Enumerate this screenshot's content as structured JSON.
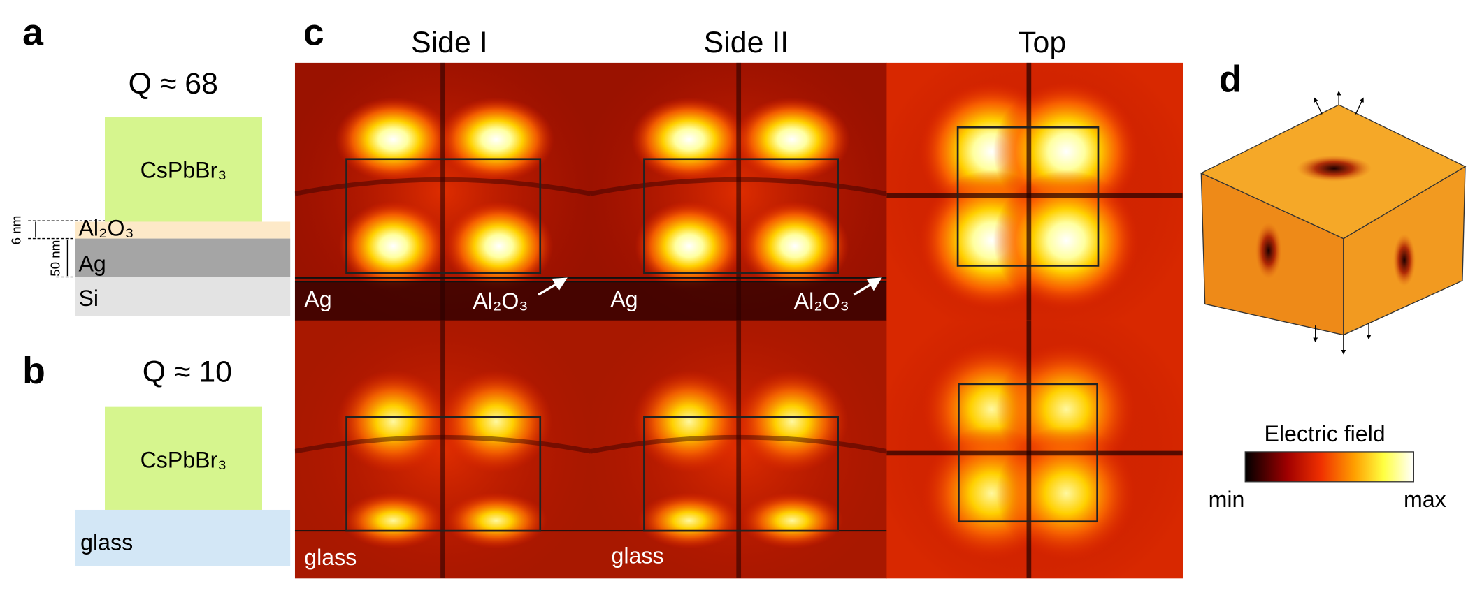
{
  "panels": {
    "a": "a",
    "b": "b",
    "c": "c",
    "d": "d"
  },
  "structure_a": {
    "q": "Q ≈ 68",
    "crystal": "CsPbBr₃",
    "spacer": "Al₂O₃",
    "metal": "Ag",
    "substrate": "Si",
    "spacer_thickness": "6 nm",
    "metal_thickness": "50 nm"
  },
  "structure_b": {
    "q": "Q ≈ 10",
    "crystal": "CsPbBr₃",
    "substrate": "glass"
  },
  "field_maps": {
    "columns": [
      "Side I",
      "Side II",
      "Top"
    ],
    "row_a_labels": {
      "side_i_left": "Ag",
      "side_i_right": "Al₂O₃",
      "side_ii_left": "Ag",
      "side_ii_right": "Al₂O₃"
    },
    "row_b_labels": {
      "side_i_left": "glass",
      "side_ii_left": "glass"
    }
  },
  "colorbar": {
    "title": "Electric field",
    "min": "min",
    "max": "max"
  }
}
